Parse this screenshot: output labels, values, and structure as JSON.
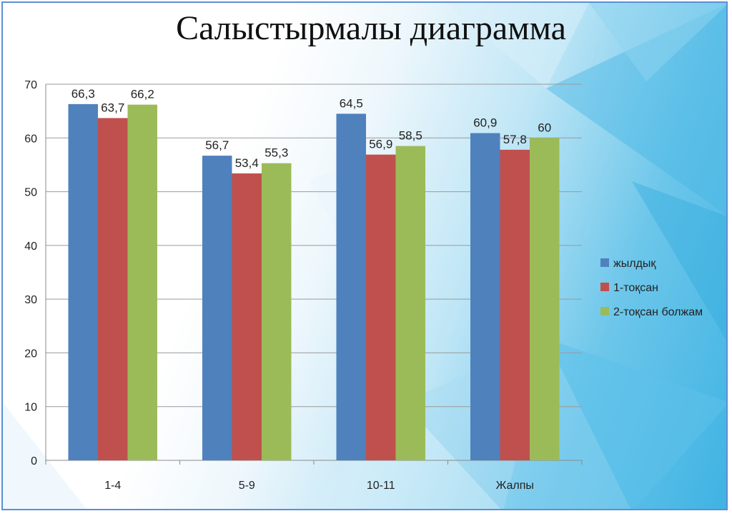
{
  "slide": {
    "title": "Салыстырмалы диаграмма"
  },
  "chart_data": {
    "type": "bar",
    "title": "",
    "xlabel": "",
    "ylabel": "",
    "categories": [
      "1-4",
      "5-9",
      "10-11",
      "Жалпы"
    ],
    "series": [
      {
        "name": "жылдық",
        "color": "#4f81bd",
        "values": [
          66.3,
          56.7,
          64.5,
          60.9
        ],
        "labels": [
          "66,3",
          "56,7",
          "64,5",
          "60,9"
        ]
      },
      {
        "name": "1-тоқсан",
        "color": "#c0504d",
        "values": [
          63.7,
          53.4,
          56.9,
          57.8
        ],
        "labels": [
          "63,7",
          "53,4",
          "56,9",
          "57,8"
        ]
      },
      {
        "name": "2-тоқсан болжам",
        "color": "#9bbb59",
        "values": [
          66.2,
          55.3,
          58.5,
          60
        ],
        "labels": [
          "66,2",
          "55,3",
          "58,5",
          "60"
        ]
      }
    ],
    "ylim": [
      0,
      70
    ],
    "yticks": [
      0,
      10,
      20,
      30,
      40,
      50,
      60,
      70
    ],
    "grid": true,
    "legend_position": "right"
  }
}
